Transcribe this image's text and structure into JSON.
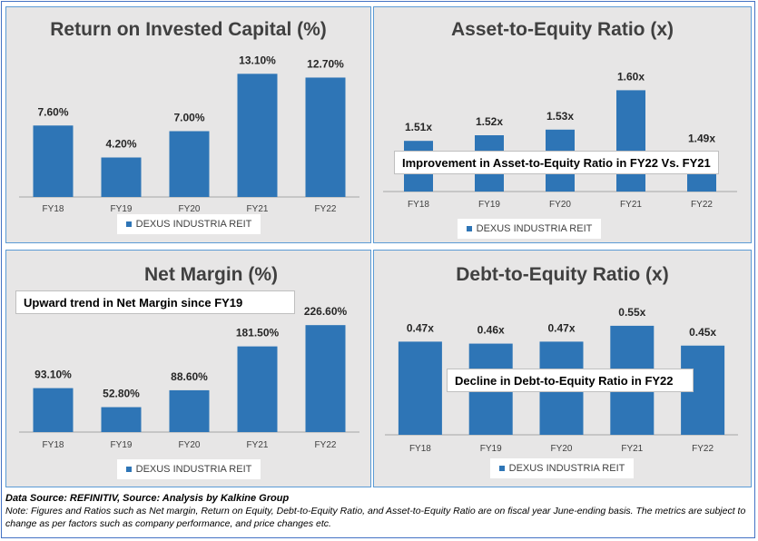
{
  "chart_data": [
    {
      "type": "bar",
      "title": "Return on Invested Capital (%)",
      "categories": [
        "FY18",
        "FY19",
        "FY20",
        "FY21",
        "FY22"
      ],
      "series": [
        {
          "name": "DEXUS INDUSTRIA REIT",
          "values": [
            7.6,
            4.2,
            7.0,
            13.1,
            12.7
          ]
        }
      ],
      "data_labels": [
        "7.60%",
        "4.20%",
        "7.00%",
        "13.10%",
        "12.70%"
      ],
      "ylim": [
        0,
        14
      ],
      "grid": false,
      "legend": "bottom",
      "annotation": ""
    },
    {
      "type": "bar",
      "title": "Asset-to-Equity Ratio (x)",
      "categories": [
        "FY18",
        "FY19",
        "FY20",
        "FY21",
        "FY22"
      ],
      "series": [
        {
          "name": "DEXUS INDUSTRIA REIT",
          "values": [
            1.51,
            1.52,
            1.53,
            1.6,
            1.49
          ]
        }
      ],
      "data_labels": [
        "1.51x",
        "1.52x",
        "1.53x",
        "1.60x",
        "1.49x"
      ],
      "ylim": [
        1.42,
        1.62
      ],
      "grid": false,
      "legend": "bottom",
      "annotation": "Improvement in Asset-to-Equity Ratio in FY22 Vs. FY21"
    },
    {
      "type": "bar",
      "title": "Net Margin (%)",
      "categories": [
        "FY18",
        "FY19",
        "FY20",
        "FY21",
        "FY22"
      ],
      "series": [
        {
          "name": "DEXUS INDUSTRIA REIT",
          "values": [
            93.1,
            52.8,
            88.6,
            181.5,
            226.6
          ]
        }
      ],
      "data_labels": [
        "93.10%",
        "52.80%",
        "88.60%",
        "181.50%",
        "226.60%"
      ],
      "ylim": [
        0,
        250
      ],
      "grid": false,
      "legend": "bottom",
      "annotation": "Upward trend in Net Margin since FY19"
    },
    {
      "type": "bar",
      "title": "Debt-to-Equity Ratio (x)",
      "categories": [
        "FY18",
        "FY19",
        "FY20",
        "FY21",
        "FY22"
      ],
      "series": [
        {
          "name": "DEXUS INDUSTRIA REIT",
          "values": [
            0.47,
            0.46,
            0.47,
            0.55,
            0.45
          ]
        }
      ],
      "data_labels": [
        "0.47x",
        "0.46x",
        "0.47x",
        "0.55x",
        "0.45x"
      ],
      "ylim": [
        0,
        0.6
      ],
      "grid": false,
      "legend": "bottom",
      "annotation": "Decline in Debt-to-Equity Ratio in FY22"
    }
  ],
  "colors": {
    "bar": "#2e75b6",
    "panel_bg": "#e7e6e6",
    "panel_border": "#5b9bd5",
    "text": "#404040"
  },
  "footer": {
    "source": "Data Source: REFINITIV, Source: Analysis by Kalkine Group",
    "note": "Note: Figures and Ratios such as Net margin, Return on Equity, Debt-to-Equity Ratio, and Asset-to-Equity Ratio are on fiscal year June-ending basis. The metrics are subject to change as per factors such as company performance, and price changes etc."
  }
}
